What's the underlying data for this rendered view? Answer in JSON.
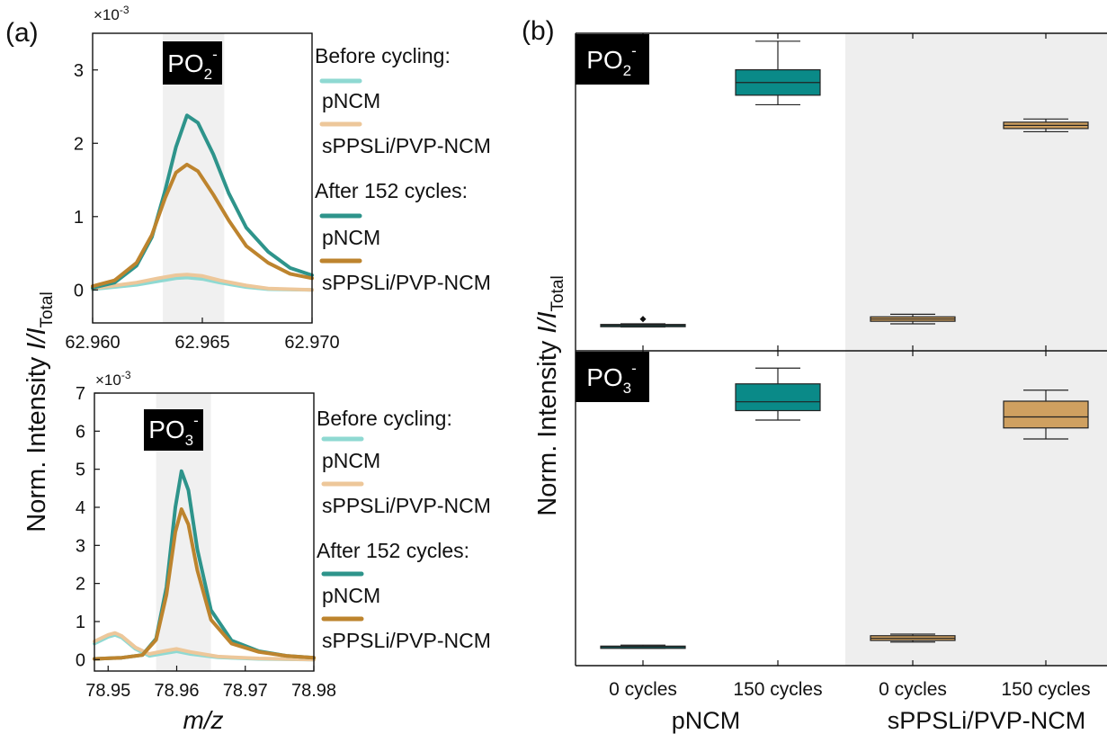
{
  "colors": {
    "before_pNCM": "#8fd9d2",
    "before_sPPSLi": "#edc79a",
    "after_pNCM": "#2e948b",
    "after_sPPSLi": "#bd842e",
    "box_pNCM": "#0a8a88",
    "box_sPPSLi": "#cfa060",
    "highlight_band": "#f0f0f0",
    "label_bg": "#000000"
  },
  "panel_labels": {
    "a": "(a)",
    "b": "(b)"
  },
  "ylabel_prefix": "Norm. Intensity ",
  "ylabel_var": "I/I",
  "ylabel_sub": "Total",
  "xlabel": "m/z",
  "legend": {
    "before": "Before cycling:",
    "after": "After 152 cycles:",
    "pNCM": "pNCM",
    "sPPSLi": "sPPSLi/PVP-NCM"
  },
  "ion_labels": {
    "po2": {
      "base": "PO",
      "sub": "2",
      "sup": "-"
    },
    "po3": {
      "base": "PO",
      "sub": "3",
      "sup": "-"
    }
  },
  "chart_data": [
    {
      "type": "line",
      "panel": "(a) top",
      "ion": "PO2-",
      "multiplier": "×10-3",
      "xlim": [
        62.96,
        62.97
      ],
      "ylim": [
        -0.45,
        3.5
      ],
      "xticks": [
        "62.960",
        "62.965",
        "62.970"
      ],
      "yticks": [
        "0",
        "1",
        "2",
        "3"
      ],
      "highlight": [
        62.9632,
        62.966
      ],
      "series": [
        {
          "name": "pNCM",
          "group": "Before cycling",
          "color": "#8fd9d2",
          "x": [
            62.96,
            62.962,
            62.963,
            62.9638,
            62.9643,
            62.965,
            62.9658,
            62.967,
            62.968,
            62.97
          ],
          "y": [
            0.01,
            0.07,
            0.12,
            0.16,
            0.17,
            0.15,
            0.1,
            0.04,
            0.01,
            0.0
          ]
        },
        {
          "name": "sPPSLi/PVP-NCM",
          "group": "Before cycling",
          "color": "#edc79a",
          "x": [
            62.96,
            62.962,
            62.963,
            62.9638,
            62.9643,
            62.965,
            62.9658,
            62.967,
            62.968,
            62.97
          ],
          "y": [
            0.02,
            0.1,
            0.16,
            0.2,
            0.21,
            0.19,
            0.13,
            0.06,
            0.02,
            0.0
          ]
        },
        {
          "name": "pNCM",
          "group": "After 152 cycles",
          "color": "#2e948b",
          "x": [
            62.96,
            62.961,
            62.962,
            62.9627,
            62.9633,
            62.9638,
            62.9643,
            62.9648,
            62.9655,
            62.9662,
            62.967,
            62.968,
            62.969,
            62.97
          ],
          "y": [
            0.03,
            0.1,
            0.33,
            0.72,
            1.35,
            1.95,
            2.38,
            2.28,
            1.85,
            1.32,
            0.85,
            0.52,
            0.3,
            0.2
          ]
        },
        {
          "name": "sPPSLi/PVP-NCM",
          "group": "After 152 cycles",
          "color": "#bd842e",
          "x": [
            62.96,
            62.961,
            62.962,
            62.9627,
            62.9633,
            62.9638,
            62.9643,
            62.9648,
            62.9655,
            62.9662,
            62.967,
            62.968,
            62.969,
            62.97
          ],
          "y": [
            0.05,
            0.13,
            0.37,
            0.75,
            1.25,
            1.6,
            1.71,
            1.62,
            1.3,
            0.95,
            0.6,
            0.37,
            0.22,
            0.16
          ]
        }
      ]
    },
    {
      "type": "line",
      "panel": "(a) bottom",
      "ion": "PO3-",
      "multiplier": "×10-3",
      "xlim": [
        78.948,
        78.98
      ],
      "ylim": [
        -0.3,
        7.0
      ],
      "xticks": [
        "78.95",
        "78.96",
        "78.97",
        "78.98"
      ],
      "yticks": [
        "0",
        "1",
        "2",
        "3",
        "4",
        "5",
        "6",
        "7"
      ],
      "highlight": [
        78.957,
        78.965
      ],
      "series": [
        {
          "name": "pNCM",
          "group": "Before cycling",
          "color": "#8fd9d2",
          "x": [
            78.948,
            78.95,
            78.951,
            78.952,
            78.954,
            78.956,
            78.958,
            78.96,
            78.962,
            78.966,
            78.972,
            78.98
          ],
          "y": [
            0.42,
            0.6,
            0.65,
            0.58,
            0.28,
            0.1,
            0.16,
            0.22,
            0.15,
            0.06,
            0.02,
            0.0
          ]
        },
        {
          "name": "sPPSLi/PVP-NCM",
          "group": "Before cycling",
          "color": "#edc79a",
          "x": [
            78.948,
            78.95,
            78.951,
            78.952,
            78.954,
            78.956,
            78.958,
            78.96,
            78.962,
            78.966,
            78.972,
            78.98
          ],
          "y": [
            0.48,
            0.65,
            0.7,
            0.62,
            0.32,
            0.15,
            0.22,
            0.28,
            0.2,
            0.08,
            0.03,
            0.0
          ]
        },
        {
          "name": "pNCM",
          "group": "After 152 cycles",
          "color": "#2e948b",
          "x": [
            78.948,
            78.952,
            78.955,
            78.957,
            78.9585,
            78.9598,
            78.9607,
            78.9617,
            78.963,
            78.965,
            78.968,
            78.972,
            78.976,
            78.98
          ],
          "y": [
            0.02,
            0.05,
            0.12,
            0.55,
            1.9,
            4.0,
            4.95,
            4.45,
            2.9,
            1.3,
            0.5,
            0.22,
            0.1,
            0.05
          ]
        },
        {
          "name": "sPPSLi/PVP-NCM",
          "group": "After 152 cycles",
          "color": "#bd842e",
          "x": [
            78.948,
            78.952,
            78.955,
            78.957,
            78.9585,
            78.9598,
            78.9607,
            78.9617,
            78.963,
            78.965,
            78.968,
            78.972,
            78.976,
            78.98
          ],
          "y": [
            0.02,
            0.05,
            0.12,
            0.52,
            1.7,
            3.35,
            3.95,
            3.55,
            2.35,
            1.05,
            0.42,
            0.2,
            0.1,
            0.05
          ]
        }
      ]
    },
    {
      "type": "box",
      "panel": "(b)",
      "categories": [
        "0 cycles",
        "150 cycles",
        "0 cycles",
        "150 cycles"
      ],
      "groups": [
        "pNCM",
        "sPPSLi/PVP-NCM"
      ],
      "ylim": [
        0,
        1
      ],
      "sub_panels": [
        {
          "ion": "PO2-",
          "boxes": [
            {
              "category": "0 cycles",
              "group": "pNCM",
              "whisker": [
                0.075,
                0.085
              ],
              "q": [
                0.077,
                0.083
              ],
              "median": 0.08,
              "outliers": [
                0.1
              ]
            },
            {
              "category": "150 cycles",
              "group": "pNCM",
              "whisker": [
                0.775,
                0.975
              ],
              "q": [
                0.805,
                0.885
              ],
              "median": 0.845
            },
            {
              "category": "0 cycles",
              "group": "sPPSLi/PVP-NCM",
              "whisker": [
                0.085,
                0.115
              ],
              "q": [
                0.093,
                0.107
              ],
              "median": 0.1
            },
            {
              "category": "150 cycles",
              "group": "sPPSLi/PVP-NCM",
              "whisker": [
                0.69,
                0.73
              ],
              "q": [
                0.7,
                0.72
              ],
              "median": 0.71
            }
          ]
        },
        {
          "ion": "PO3-",
          "boxes": [
            {
              "category": "0 cycles",
              "group": "pNCM",
              "whisker": [
                0.055,
                0.065
              ],
              "q": [
                0.058,
                0.062
              ],
              "median": 0.06
            },
            {
              "category": "150 cycles",
              "group": "pNCM",
              "whisker": [
                0.78,
                0.945
              ],
              "q": [
                0.81,
                0.895
              ],
              "median": 0.838
            },
            {
              "category": "0 cycles",
              "group": "sPPSLi/PVP-NCM",
              "whisker": [
                0.075,
                0.1
              ],
              "q": [
                0.08,
                0.095
              ],
              "median": 0.087
            },
            {
              "category": "150 cycles",
              "group": "sPPSLi/PVP-NCM",
              "whisker": [
                0.72,
                0.875
              ],
              "q": [
                0.755,
                0.84
              ],
              "median": 0.79
            }
          ]
        }
      ]
    }
  ]
}
